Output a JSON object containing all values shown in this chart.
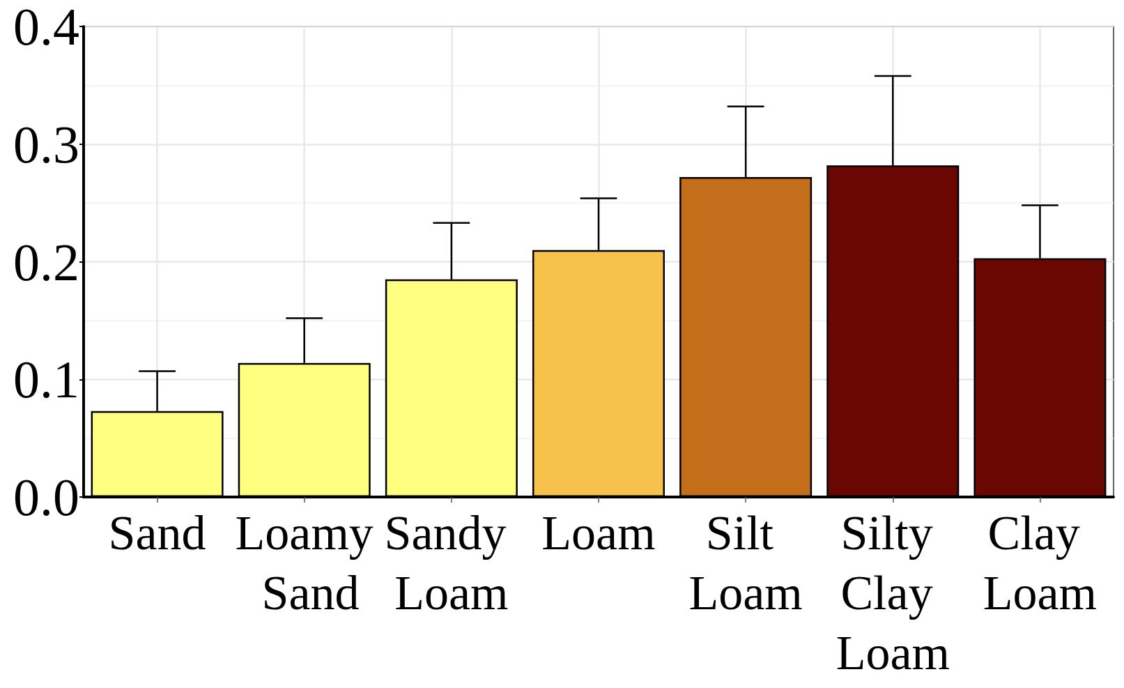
{
  "chart_data": {
    "type": "bar",
    "categories": [
      "Sand",
      "Loamy Sand",
      "Sandy Loam",
      "Loam",
      "Silt Loam",
      "Silty Clay Loam",
      "Clay Loam"
    ],
    "values": [
      0.073,
      0.114,
      0.185,
      0.21,
      0.272,
      0.282,
      0.203
    ],
    "colors": [
      "#ffff80",
      "#ffff80",
      "#ffff80",
      "#f6c24c",
      "#c46e1c",
      "#6b0702",
      "#6b0702"
    ],
    "errors": [
      [
        0.073,
        0.107
      ],
      [
        0.114,
        0.152
      ],
      [
        0.185,
        0.233
      ],
      [
        0.21,
        0.254
      ],
      [
        0.272,
        0.332
      ],
      [
        0.282,
        0.358
      ],
      [
        0.203,
        0.248
      ]
    ],
    "ylim": [
      0,
      0.4
    ],
    "yticks": [
      {
        "value": 0,
        "label": "0.0"
      },
      0.1,
      0.2,
      0.3,
      0.4
    ],
    "grid": true
  }
}
